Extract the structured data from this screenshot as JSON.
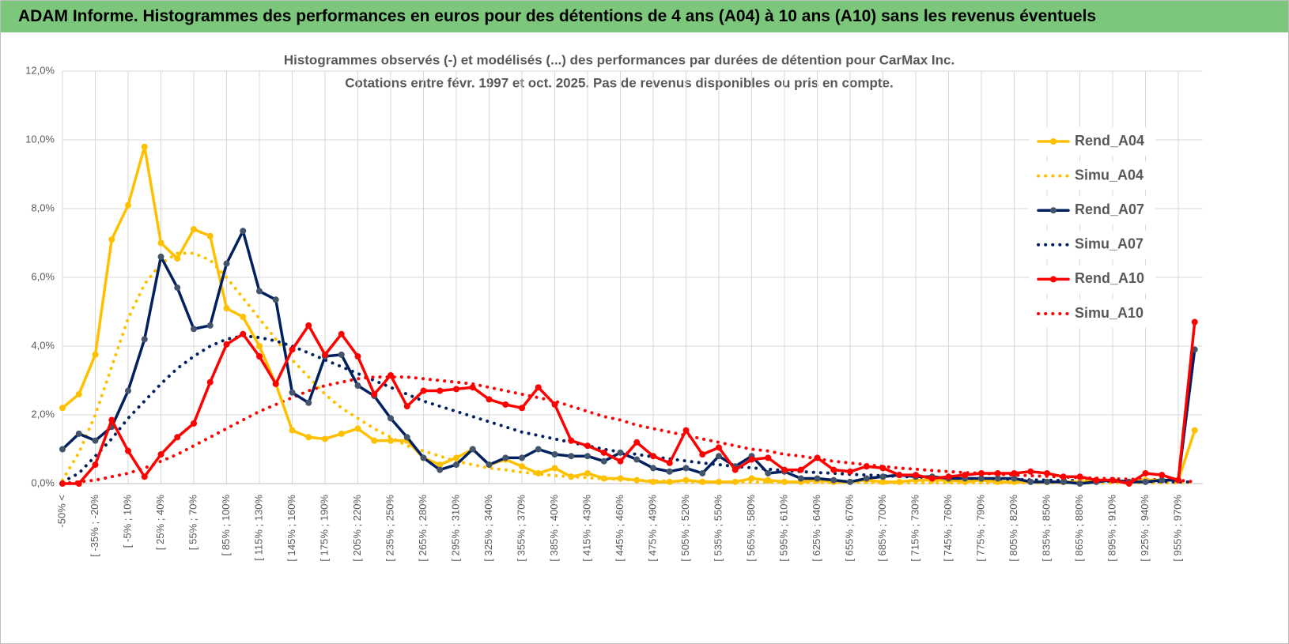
{
  "header": {
    "title": "ADAM Informe. Histogrammes des performances en euros pour des détentions de 4 ans (A04) à 10 ans (A10) sans les revenus éventuels"
  },
  "chart_data": {
    "type": "line",
    "title": "Histogrammes observés (-) et modélisés (...) des performances par durées de détention pour CarMax Inc.",
    "subtitle": "Cotations entre févr. 1997 et oct. 2025. Pas de revenus disponibles ou pris en compte.",
    "categories": [
      "-50% <",
      null,
      "[ -35% ; -20%",
      null,
      "[ -5% ; 10%",
      null,
      "[ 25% ; 40%",
      null,
      "[ 55% ; 70%",
      null,
      "[ 85% ; 100%",
      null,
      "[ 115% ; 130%",
      null,
      "[ 145% ; 160%",
      null,
      "[ 175% ; 190%",
      null,
      "[ 205% ; 220%",
      null,
      "[ 235% ; 250%",
      null,
      "[ 265% ; 280%",
      null,
      "[ 295% ; 310%",
      null,
      "[ 325% ; 340%",
      null,
      "[ 355% ; 370%",
      null,
      "[ 385% ; 400%",
      null,
      "[ 415% ; 430%",
      null,
      "[ 445% ; 460%",
      null,
      "[ 475% ; 490%",
      null,
      "[ 505% ; 520%",
      null,
      "[ 535% ; 550%",
      null,
      "[ 565% ; 580%",
      null,
      "[ 595% ; 610%",
      null,
      "[ 625% ; 640%",
      null,
      "[ 655% ; 670%",
      null,
      "[ 685% ; 700%",
      null,
      "[ 715% ; 730%",
      null,
      "[ 745% ; 760%",
      null,
      "[ 775% ; 790%",
      null,
      "[ 805% ; 820%",
      null,
      "[ 835% ; 850%",
      null,
      "[ 865% ; 880%",
      null,
      "[ 895% ; 910%",
      null,
      "[ 925% ; 940%",
      null,
      "[ 955% ; 970%",
      null
    ],
    "ylim": [
      0,
      12
    ],
    "yticks": [
      {
        "value": 0,
        "label": "0,0%"
      },
      {
        "value": 2,
        "label": "2,0%"
      },
      {
        "value": 4,
        "label": "4,0%"
      },
      {
        "value": 6,
        "label": "6,0%"
      },
      {
        "value": 8,
        "label": "8,0%"
      },
      {
        "value": 10,
        "label": "10,0%"
      },
      {
        "value": 12,
        "label": "12,0%"
      }
    ],
    "grid": true,
    "legend": "right",
    "series": [
      {
        "name": "Rend_A04",
        "color": "#ffc000",
        "line_style": "solid",
        "marker": true,
        "values": [
          2.2,
          2.6,
          3.75,
          7.1,
          8.1,
          9.8,
          7.0,
          6.55,
          7.4,
          7.2,
          5.1,
          4.85,
          4.0,
          2.9,
          1.55,
          1.35,
          1.3,
          1.45,
          1.6,
          1.25,
          1.25,
          1.25,
          0.75,
          0.55,
          0.75,
          1.0,
          0.55,
          0.7,
          0.5,
          0.3,
          0.45,
          0.2,
          0.3,
          0.15,
          0.15,
          0.1,
          0.05,
          0.05,
          0.1,
          0.05,
          0.05,
          0.05,
          0.15,
          0.1,
          0.05,
          0.05,
          0.1,
          0.05,
          0.05,
          0.1,
          0.05,
          0.05,
          0.1,
          0.1,
          0.1,
          0.05,
          0.1,
          0.05,
          0.05,
          0.05,
          0.05,
          0.05,
          0.05,
          0.1,
          0.1,
          0.05,
          0.1,
          0.1,
          0.1,
          1.55
        ]
      },
      {
        "name": "Simu_A04",
        "color": "#ffc000",
        "line_style": "dotted",
        "marker": false,
        "values": [
          0.1,
          0.9,
          2.0,
          3.4,
          4.8,
          5.8,
          6.4,
          6.7,
          6.7,
          6.5,
          6.0,
          5.4,
          4.8,
          4.2,
          3.6,
          3.1,
          2.6,
          2.2,
          1.9,
          1.6,
          1.35,
          1.1,
          0.95,
          0.8,
          0.65,
          0.55,
          0.45,
          0.4,
          0.33,
          0.28,
          0.23,
          0.2,
          0.17,
          0.14,
          0.12,
          0.1,
          0.08,
          0.07,
          0.06,
          0.05,
          0.05,
          0.05,
          0.04,
          0.04,
          0.04,
          0.03,
          0.03,
          0.03,
          0.03,
          0.03,
          0.02,
          0.02,
          0.02,
          0.02,
          0.02,
          0.02,
          0.02,
          0.02,
          0.02,
          0.02,
          0.02,
          0.02,
          0.02,
          0.02,
          0.02,
          0.02,
          0.02,
          0.02,
          0.02,
          0.05
        ]
      },
      {
        "name": "Rend_A07",
        "color": "#002060",
        "marker_color": "#44546a",
        "line_style": "solid",
        "marker": true,
        "values": [
          1.0,
          1.45,
          1.25,
          1.65,
          2.7,
          4.2,
          6.6,
          5.7,
          4.5,
          4.6,
          6.4,
          7.35,
          5.6,
          5.35,
          2.65,
          2.35,
          3.7,
          3.75,
          2.85,
          2.55,
          1.9,
          1.35,
          0.75,
          0.4,
          0.55,
          1.0,
          0.55,
          0.75,
          0.75,
          1.0,
          0.85,
          0.8,
          0.8,
          0.65,
          0.9,
          0.7,
          0.45,
          0.35,
          0.45,
          0.3,
          0.8,
          0.5,
          0.8,
          0.3,
          0.35,
          0.15,
          0.15,
          0.1,
          0.05,
          0.15,
          0.2,
          0.25,
          0.2,
          0.2,
          0.15,
          0.15,
          0.15,
          0.15,
          0.15,
          0.05,
          0.05,
          0.05,
          0.0,
          0.05,
          0.1,
          0.05,
          0.05,
          0.1,
          0.1,
          3.9
        ]
      },
      {
        "name": "Simu_A07",
        "color": "#002060",
        "line_style": "dotted",
        "marker": false,
        "values": [
          0.05,
          0.3,
          0.8,
          1.3,
          1.9,
          2.4,
          2.9,
          3.35,
          3.7,
          4.0,
          4.2,
          4.3,
          4.25,
          4.15,
          4.0,
          3.8,
          3.6,
          3.4,
          3.2,
          3.0,
          2.8,
          2.6,
          2.4,
          2.25,
          2.1,
          1.95,
          1.8,
          1.65,
          1.5,
          1.4,
          1.3,
          1.2,
          1.1,
          1.0,
          0.92,
          0.85,
          0.78,
          0.72,
          0.66,
          0.6,
          0.55,
          0.5,
          0.46,
          0.42,
          0.38,
          0.35,
          0.32,
          0.3,
          0.27,
          0.25,
          0.23,
          0.21,
          0.19,
          0.18,
          0.16,
          0.15,
          0.14,
          0.13,
          0.12,
          0.11,
          0.1,
          0.09,
          0.09,
          0.08,
          0.07,
          0.07,
          0.06,
          0.06,
          0.05,
          0.05
        ]
      },
      {
        "name": "Rend_A10",
        "color": "#ff0000",
        "line_style": "solid",
        "marker": true,
        "values": [
          0.0,
          0.0,
          0.55,
          1.85,
          0.95,
          0.2,
          0.85,
          1.35,
          1.75,
          2.95,
          4.05,
          4.35,
          3.7,
          2.9,
          3.9,
          4.6,
          3.75,
          4.35,
          3.7,
          2.6,
          3.15,
          2.25,
          2.7,
          2.7,
          2.75,
          2.8,
          2.45,
          2.3,
          2.2,
          2.8,
          2.3,
          1.25,
          1.1,
          0.9,
          0.65,
          1.2,
          0.8,
          0.6,
          1.55,
          0.85,
          1.05,
          0.4,
          0.7,
          0.75,
          0.4,
          0.4,
          0.75,
          0.4,
          0.35,
          0.5,
          0.45,
          0.25,
          0.25,
          0.15,
          0.2,
          0.25,
          0.3,
          0.3,
          0.3,
          0.35,
          0.3,
          0.2,
          0.2,
          0.1,
          0.1,
          0.0,
          0.3,
          0.25,
          0.1,
          4.7
        ]
      },
      {
        "name": "Simu_A10",
        "color": "#ff0000",
        "line_style": "dotted",
        "marker": false,
        "values": [
          0.0,
          0.05,
          0.1,
          0.2,
          0.3,
          0.45,
          0.65,
          0.85,
          1.1,
          1.35,
          1.6,
          1.85,
          2.1,
          2.3,
          2.5,
          2.7,
          2.85,
          2.95,
          3.05,
          3.1,
          3.1,
          3.1,
          3.05,
          3.0,
          2.95,
          2.9,
          2.8,
          2.7,
          2.6,
          2.5,
          2.4,
          2.25,
          2.1,
          1.95,
          1.85,
          1.7,
          1.6,
          1.5,
          1.4,
          1.3,
          1.2,
          1.1,
          1.0,
          0.95,
          0.85,
          0.8,
          0.72,
          0.65,
          0.6,
          0.55,
          0.5,
          0.45,
          0.42,
          0.38,
          0.35,
          0.32,
          0.3,
          0.27,
          0.25,
          0.23,
          0.21,
          0.19,
          0.17,
          0.16,
          0.14,
          0.13,
          0.12,
          0.11,
          0.1,
          0.05
        ]
      }
    ]
  }
}
